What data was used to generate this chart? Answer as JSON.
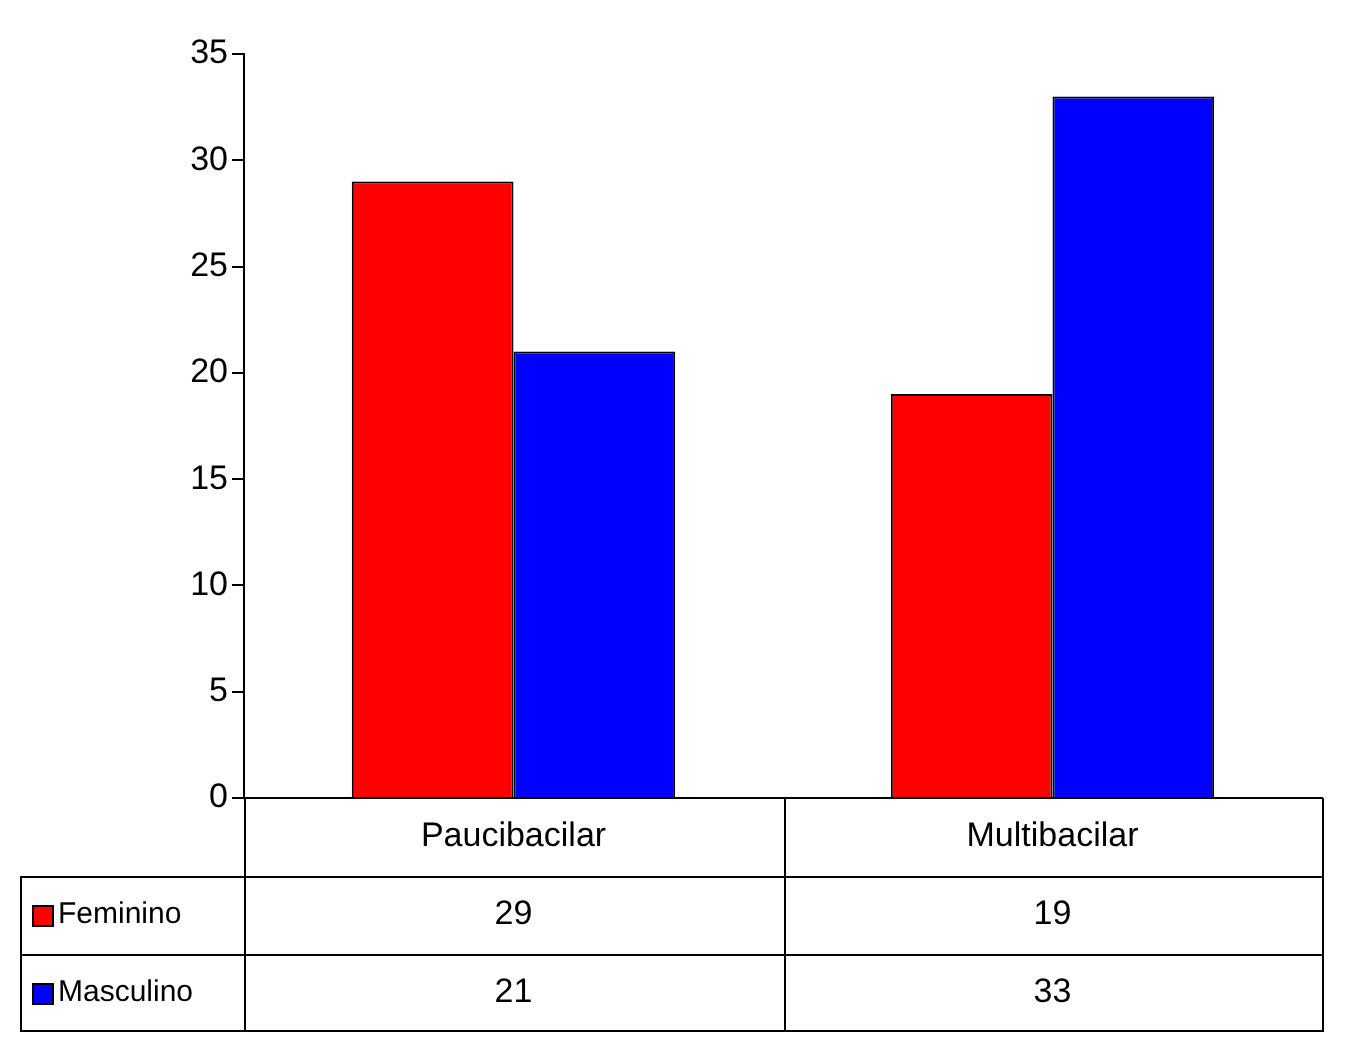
{
  "chart_data": {
    "type": "bar",
    "categories": [
      "Paucibacilar",
      "Multibacilar"
    ],
    "series": [
      {
        "name": "Feminino",
        "color": "#ff0000",
        "values": [
          29,
          19
        ]
      },
      {
        "name": "Masculino",
        "color": "#0000ff",
        "values": [
          21,
          33
        ]
      }
    ],
    "ylim": [
      0,
      35
    ],
    "yticks": [
      0,
      5,
      10,
      15,
      20,
      25,
      30,
      35
    ],
    "grid": false,
    "data_labels": true,
    "legend": "bottom left"
  }
}
